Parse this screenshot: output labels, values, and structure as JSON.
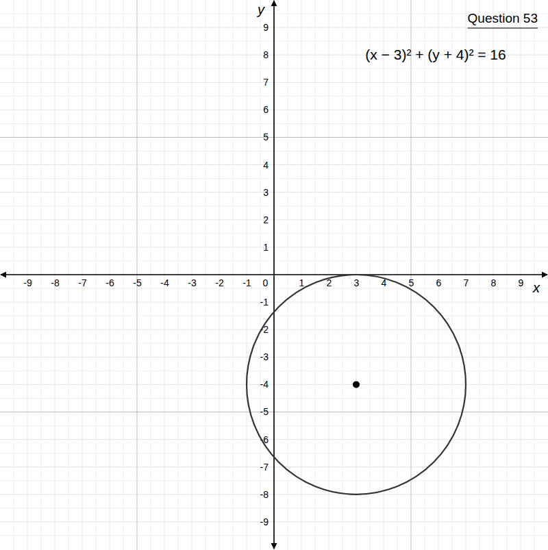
{
  "chart_data": {
    "type": "circle",
    "title": "Question 53",
    "equation": "(x − 3)² + (y + 4)² = 16",
    "x_label": "x",
    "y_label": "y",
    "center_x": 3,
    "center_y": -4,
    "radius": 4,
    "xlim": [
      -10,
      10
    ],
    "ylim": [
      -10,
      10
    ],
    "xticks": [
      -9,
      -8,
      -7,
      -6,
      -5,
      -4,
      -3,
      -2,
      -1,
      0,
      1,
      2,
      3,
      4,
      5,
      6,
      7,
      8,
      9
    ],
    "yticks": [
      -9,
      -8,
      -7,
      -6,
      -5,
      -4,
      -3,
      -2,
      -1,
      1,
      2,
      3,
      4,
      5,
      6,
      7,
      8,
      9
    ],
    "grid": true,
    "marker": "dot",
    "color": "#333333"
  }
}
